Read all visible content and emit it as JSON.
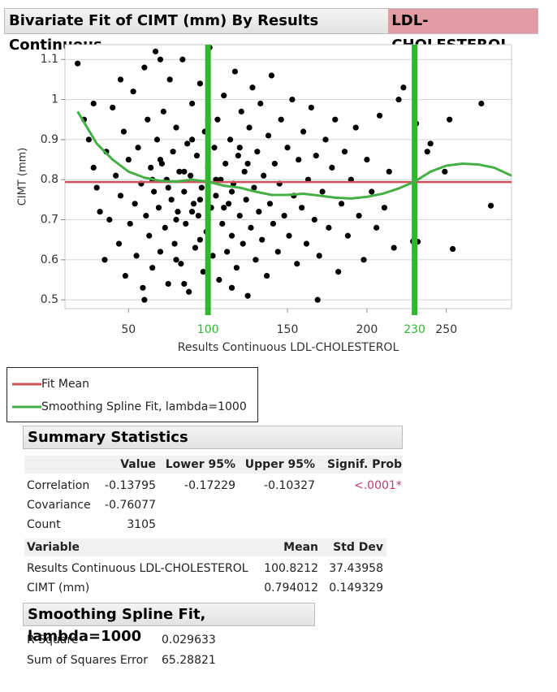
{
  "chart_data": {
    "type": "scatter",
    "title": "Bivariate Fit of CIMT (mm) By Results Continuous",
    "title_highlight": "LDL-CHOLESTEROL",
    "xlabel": "Results Continuous LDL-CHOLESTEROL",
    "ylabel": "CIMT (mm)",
    "xlim": [
      10,
      291
    ],
    "ylim": [
      0.478,
      1.137
    ],
    "xticks": [
      50,
      150,
      200,
      250
    ],
    "yticks": [
      0.5,
      0.6,
      0.7,
      0.8,
      0.9,
      1,
      1.1
    ],
    "grid": true,
    "ref_lines": [
      {
        "value": 100,
        "color": "#2eb82e"
      },
      {
        "value": 230,
        "color": "#2eb82e"
      }
    ],
    "points": {
      "color": "#000000",
      "x": [
        18,
        22,
        25,
        28,
        30,
        32,
        35,
        36,
        38,
        40,
        42,
        44,
        45,
        47,
        48,
        50,
        51,
        53,
        54,
        55,
        56,
        58,
        59,
        60,
        61,
        62,
        63,
        64,
        65,
        66,
        67,
        68,
        69,
        70,
        71,
        72,
        73,
        74,
        75,
        76,
        77,
        78,
        79,
        80,
        81,
        82,
        83,
        84,
        85,
        86,
        87,
        88,
        89,
        90,
        91,
        92,
        93,
        94,
        95,
        96,
        97,
        98,
        99,
        100,
        101,
        102,
        103,
        104,
        105,
        106,
        107,
        108,
        109,
        110,
        111,
        112,
        113,
        114,
        115,
        116,
        117,
        118,
        119,
        120,
        121,
        122,
        123,
        124,
        125,
        126,
        127,
        128,
        129,
        130,
        131,
        132,
        133,
        134,
        135,
        137,
        138,
        139,
        140,
        141,
        142,
        144,
        145,
        146,
        148,
        150,
        151,
        153,
        154,
        156,
        157,
        159,
        160,
        162,
        163,
        165,
        167,
        168,
        170,
        172,
        174,
        176,
        178,
        180,
        182,
        184,
        186,
        188,
        190,
        193,
        195,
        198,
        200,
        203,
        206,
        208,
        211,
        214,
        217,
        220,
        223,
        229,
        232,
        231,
        238,
        240,
        249,
        252,
        254,
        272,
        278,
        28,
        45,
        60,
        70,
        85,
        115,
        169,
        65,
        75,
        85,
        95,
        105,
        115,
        125,
        80,
        90,
        100,
        110,
        70,
        90,
        100,
        80,
        95,
        120
      ],
      "y": [
        1.09,
        0.95,
        0.9,
        0.83,
        0.78,
        0.72,
        0.6,
        0.87,
        0.7,
        0.98,
        0.81,
        0.64,
        0.76,
        0.92,
        0.56,
        0.85,
        0.69,
        1.02,
        0.74,
        0.61,
        0.88,
        0.79,
        0.53,
        1.08,
        0.71,
        0.95,
        0.66,
        0.83,
        0.58,
        0.77,
        1.12,
        0.9,
        0.73,
        0.62,
        0.84,
        0.97,
        0.68,
        0.8,
        0.54,
        1.05,
        0.75,
        0.87,
        0.64,
        0.93,
        0.72,
        0.82,
        0.59,
        1.1,
        0.77,
        0.69,
        0.89,
        0.52,
        0.81,
        0.99,
        0.74,
        0.63,
        0.86,
        0.71,
        1.04,
        0.78,
        0.57,
        0.92,
        0.67,
        0.83,
        1.13,
        0.73,
        0.61,
        0.88,
        0.76,
        0.95,
        0.55,
        0.8,
        0.69,
        1.01,
        0.84,
        0.62,
        0.74,
        0.9,
        0.66,
        0.79,
        1.07,
        0.58,
        0.86,
        0.71,
        0.97,
        0.64,
        0.82,
        0.75,
        0.51,
        0.93,
        0.68,
        1.03,
        0.78,
        0.6,
        0.87,
        0.72,
        0.99,
        0.65,
        0.81,
        0.56,
        0.91,
        0.74,
        1.06,
        0.69,
        0.84,
        0.62,
        0.79,
        0.95,
        0.71,
        0.88,
        0.66,
        1.0,
        0.76,
        0.59,
        0.85,
        0.73,
        0.92,
        0.64,
        0.8,
        0.98,
        0.7,
        0.86,
        0.61,
        0.77,
        0.9,
        0.68,
        0.83,
        0.95,
        0.57,
        0.74,
        0.87,
        0.66,
        0.8,
        0.93,
        0.71,
        0.6,
        0.85,
        0.77,
        0.68,
        0.96,
        0.73,
        0.82,
        0.63,
        1.0,
        1.03,
        0.646,
        0.645,
        0.94,
        0.87,
        0.89,
        0.82,
        0.95,
        0.627,
        0.99,
        0.735,
        0.99,
        1.05,
        0.5,
        1.1,
        0.54,
        0.53,
        0.5,
        0.8,
        0.78,
        0.82,
        0.75,
        0.8,
        0.77,
        0.84,
        0.7,
        0.72,
        0.7,
        0.73,
        0.85,
        0.9,
        0.95,
        0.6,
        0.65,
        0.88
      ]
    },
    "series": [
      {
        "name": "Fit Mean",
        "color": "#d0505a",
        "value": 0.794012
      },
      {
        "name": "Smoothing Spline Fit, lambda=1000",
        "color": "#44b044",
        "x": [
          18,
          30,
          40,
          50,
          60,
          70,
          80,
          90,
          95,
          100,
          110,
          120,
          130,
          140,
          150,
          160,
          170,
          180,
          190,
          200,
          210,
          220,
          230,
          240,
          250,
          260,
          270,
          280,
          291
        ],
        "values": [
          0.97,
          0.89,
          0.85,
          0.82,
          0.805,
          0.797,
          0.795,
          0.8,
          0.797,
          0.795,
          0.785,
          0.78,
          0.77,
          0.762,
          0.762,
          0.765,
          0.76,
          0.755,
          0.753,
          0.757,
          0.765,
          0.778,
          0.795,
          0.82,
          0.835,
          0.84,
          0.838,
          0.83,
          0.81
        ]
      }
    ]
  },
  "summary_statistics": {
    "title": "Summary Statistics",
    "columns": [
      "Value",
      "Lower 95%",
      "Upper 95%",
      "Signif. Prob"
    ],
    "rows": [
      [
        "Correlation",
        "-0.13795",
        "-0.17229",
        "-0.10327",
        "<.0001*"
      ],
      [
        "Covariance",
        "-0.76077"
      ],
      [
        "Count",
        "3105"
      ]
    ]
  },
  "variables": {
    "columns": [
      "Variable",
      "Mean",
      "Std Dev"
    ],
    "rows": [
      [
        "Results Continuous LDL-CHOLESTEROL",
        "100.8212",
        "37.43958"
      ],
      [
        "CIMT (mm)",
        "0.794012",
        "0.149329"
      ]
    ]
  },
  "spline_fit": {
    "title": "Smoothing Spline Fit, lambda=1000",
    "rows": [
      [
        "R-Square",
        "0.029633"
      ],
      [
        "Sum of Squares Error",
        "65.28821"
      ]
    ]
  }
}
